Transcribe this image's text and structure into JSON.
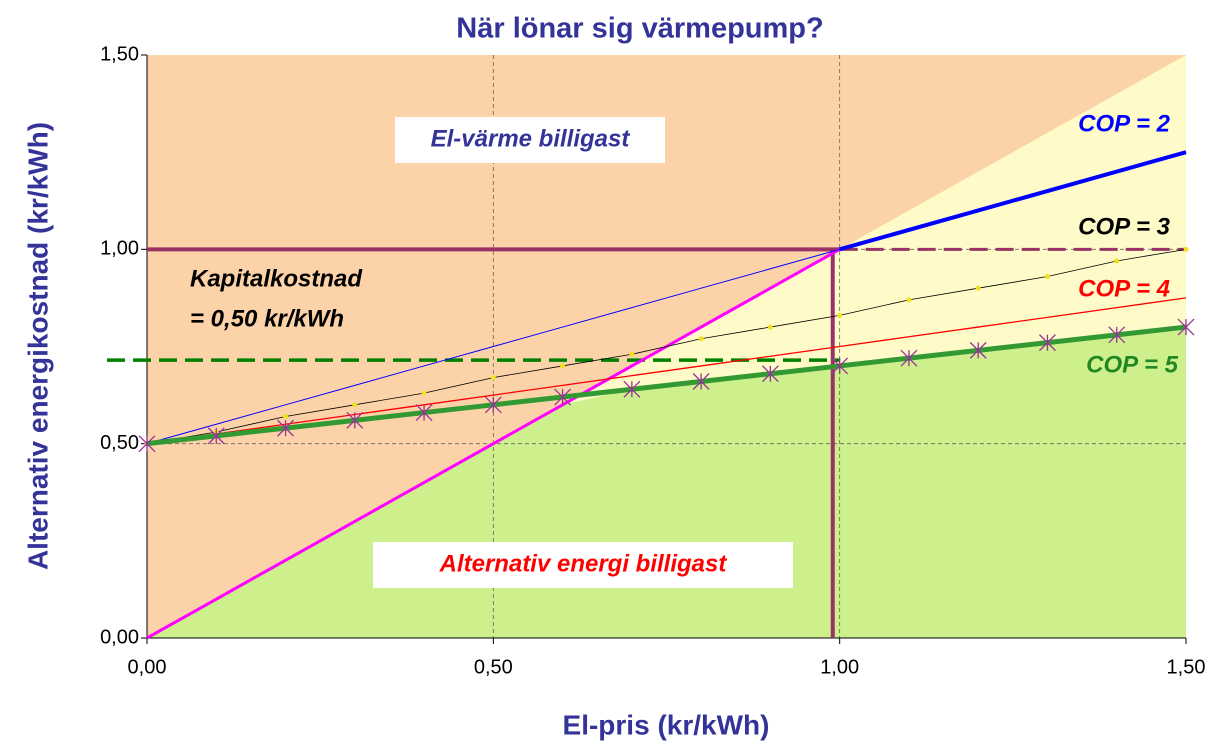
{
  "chart_data": {
    "type": "line",
    "title": "När lönar sig värmepump?",
    "x_label": "El-pris (kr/kWh)",
    "y_label": "Alternativ energikostnad (kr/kWh)",
    "xlim": [
      0,
      1.5
    ],
    "ylim": [
      0,
      1.5
    ],
    "xticks": [
      {
        "value": 0,
        "label": "0,00"
      },
      {
        "value": 0.5,
        "label": "0,50"
      },
      {
        "value": 1,
        "label": "1,00"
      },
      {
        "value": 1.5,
        "label": "1,50"
      }
    ],
    "yticks": [
      {
        "value": 0,
        "label": "0,00"
      },
      {
        "value": 0.5,
        "label": "0,50"
      },
      {
        "value": 1,
        "label": "1,00"
      },
      {
        "value": 1.5,
        "label": "1,50"
      }
    ],
    "grid": true,
    "x": [
      0,
      0.1,
      0.2,
      0.3,
      0.4,
      0.5,
      0.6,
      0.7,
      0.8,
      0.9,
      1,
      1.1,
      1.2,
      1.3,
      1.4,
      1.5
    ],
    "series": [
      {
        "color": "#ff00ff",
        "values": [
          0,
          0.1,
          0.2,
          0.3,
          0.4,
          0.5,
          0.6,
          0.7,
          0.8,
          0.9,
          1,
          null,
          null,
          null,
          null,
          null
        ]
      },
      {
        "name": "COP = 2",
        "color": "#0000ff",
        "values": [
          0.5,
          0.55,
          0.6,
          0.65,
          0.7,
          0.75,
          0.8,
          0.85,
          0.9,
          0.95,
          1,
          1.05,
          1.1,
          1.15,
          1.2,
          1.25
        ]
      },
      {
        "name": "COP = 3",
        "color": "#000000",
        "values": [
          0.5,
          0.53,
          0.57,
          0.6,
          0.63,
          0.67,
          0.7,
          0.73,
          0.77,
          0.8,
          0.83,
          0.87,
          0.9,
          0.93,
          0.97,
          1
        ]
      },
      {
        "name": "COP = 4",
        "color": "#ff0000",
        "values": [
          0.5,
          0.525,
          0.55,
          0.575,
          0.6,
          0.625,
          0.65,
          0.675,
          0.7,
          0.725,
          0.75,
          0.775,
          0.8,
          0.825,
          0.85,
          0.875
        ]
      },
      {
        "name": "COP = 5",
        "color": "#339933",
        "values": [
          0.5,
          0.52,
          0.54,
          0.56,
          0.58,
          0.6,
          0.62,
          0.64,
          0.66,
          0.68,
          0.7,
          0.72,
          0.74,
          0.76,
          0.78,
          0.8
        ]
      }
    ],
    "hlines": [
      {
        "y": 1,
        "color": "#993366"
      },
      {
        "y": 0.715,
        "color": "#008000"
      }
    ],
    "vlines": [
      {
        "x": 0.99,
        "color": "#993366"
      }
    ],
    "annotations": [
      "El-värme billigast",
      "Kapitalkostnad",
      "= 0,50 kr/kWh",
      "Alternativ energi billigast"
    ]
  }
}
